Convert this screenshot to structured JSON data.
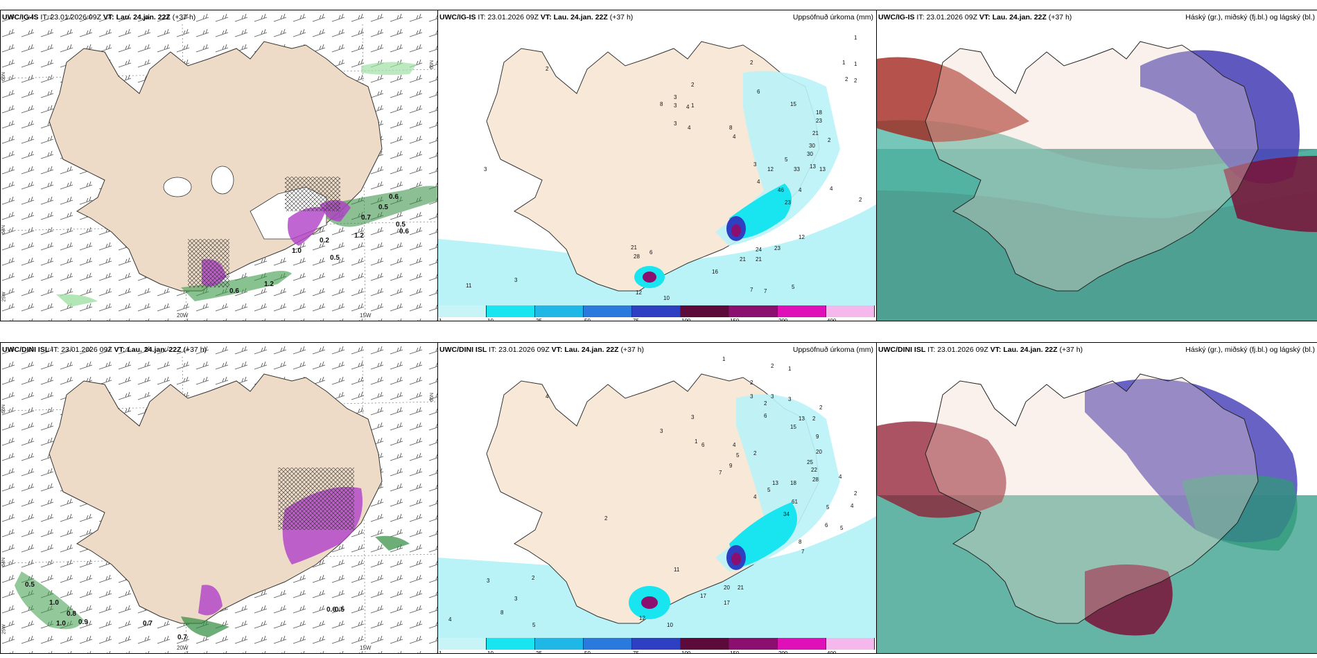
{
  "rows": [
    {
      "model": "UWC/IG-IS",
      "it_label": "IT:",
      "it_value": "23.01.2026 09Z",
      "vt_label": "VT:",
      "vt_value": "Lau. 24.jan. 22Z",
      "lead": "(+37 h)"
    },
    {
      "model": "UWC/DINI ISL",
      "it_label": "IT:",
      "it_value": "23.01.2026 09Z",
      "vt_label": "VT:",
      "vt_value": "Lau. 24.jan. 22Z",
      "lead": "(+37 h)"
    }
  ],
  "precip_title": "Uppsöfnuð úrkoma (mm)",
  "cloud_title": "Háský (gr.), miðský (fj.bl.) og lágský (bl.)",
  "colorbar": {
    "labels": [
      "1",
      "10",
      "25",
      "50",
      "75",
      "100",
      "150",
      "200",
      "400"
    ],
    "colors": [
      "#c8f4f8",
      "#19e5f0",
      "#1fb7e6",
      "#2a79dc",
      "#2f3fc2",
      "#5c0a3a",
      "#8a0f6e",
      "#e010b8",
      "#f4b8ec"
    ]
  },
  "axes": {
    "lon_labels": [
      "20W",
      "15W"
    ],
    "lat_labels": [
      "66N",
      "64N",
      "25W",
      "65N"
    ]
  },
  "wind_numbers_top": [
    "0.6",
    "0.5",
    "0.7",
    "0.2",
    "0.5",
    "0.6",
    "1.0",
    "0.5",
    "1.2",
    "0.6",
    "1.2"
  ],
  "wind_numbers_bottom": [
    "0.5",
    "1.0",
    "0.8",
    "1.0",
    "0.9",
    "0.7",
    "0.7",
    "0.6",
    "0.5"
  ],
  "precip_numbers_top": [
    "1",
    "1",
    "1",
    "2",
    "2",
    "2",
    "2",
    "3",
    "6",
    "8",
    "3",
    "4",
    "1",
    "15",
    "18",
    "23",
    "21",
    "30",
    "13",
    "2",
    "3",
    "4",
    "8",
    "4",
    "30",
    "33",
    "13",
    "5",
    "12",
    "3",
    "23",
    "4",
    "46",
    "4",
    "12",
    "21",
    "28",
    "6",
    "24",
    "23",
    "16",
    "21",
    "21",
    "11",
    "3",
    "12",
    "10",
    "7",
    "7",
    "5",
    "2",
    "4",
    "3",
    "2"
  ],
  "precip_numbers_bottom": [
    "1",
    "2",
    "1",
    "2",
    "4",
    "3",
    "3",
    "3",
    "2",
    "2",
    "6",
    "3",
    "13",
    "15",
    "2",
    "9",
    "20",
    "1",
    "3",
    "6",
    "4",
    "5",
    "9",
    "2",
    "25",
    "22",
    "28",
    "7",
    "13",
    "18",
    "34",
    "61",
    "5",
    "4",
    "2",
    "4",
    "4",
    "6",
    "5",
    "5",
    "8",
    "7",
    "2",
    "11",
    "20",
    "21",
    "17",
    "17",
    "12",
    "10",
    "3",
    "8",
    "4",
    "5",
    "3",
    "2"
  ]
}
